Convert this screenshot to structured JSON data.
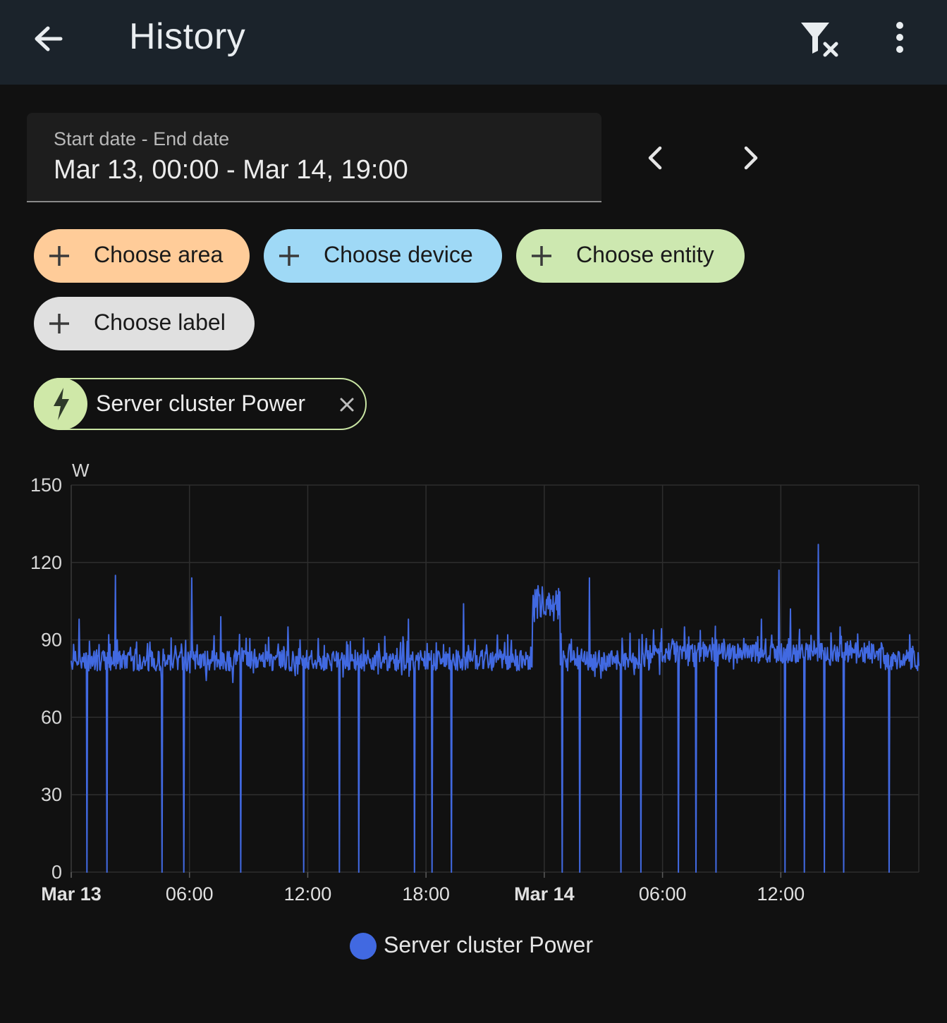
{
  "header": {
    "title": "History",
    "back_icon": "arrow-left-icon",
    "filter_clear_icon": "filter-remove-icon",
    "menu_icon": "dots-vertical-icon"
  },
  "date_picker": {
    "label": "Start date - End date",
    "value": "Mar 13, 00:00 - Mar 14, 19:00",
    "prev_icon": "chevron-left-icon",
    "next_icon": "chevron-right-icon"
  },
  "target_picker": {
    "chips": [
      {
        "label": "Choose area",
        "color": "#ffcc99",
        "icon": "plus-icon"
      },
      {
        "label": "Choose device",
        "color": "#9fd9f6",
        "icon": "plus-icon"
      },
      {
        "label": "Choose entity",
        "color": "#cde8b0",
        "icon": "plus-icon"
      },
      {
        "label": "Choose label",
        "color": "#e0e0e0",
        "icon": "plus-icon"
      }
    ]
  },
  "selected_entity": {
    "label": "Server cluster Power",
    "icon": "lightning-bolt-icon",
    "remove_icon": "close-icon",
    "color": "#cfe8a8"
  },
  "colors": {
    "background": "#111111",
    "header": "#1b232b",
    "series": "#4169e1",
    "grid": "#2e2e2e"
  },
  "chart_data": {
    "type": "line",
    "unit": "W",
    "ylim": [
      0,
      150
    ],
    "y_ticks": [
      "0",
      "30",
      "60",
      "90",
      "120",
      "150"
    ],
    "x_range_hours": [
      0,
      43
    ],
    "x_ticks": [
      {
        "h": 0,
        "label": "Mar 13",
        "bold": true
      },
      {
        "h": 6,
        "label": "06:00",
        "bold": false
      },
      {
        "h": 12,
        "label": "12:00",
        "bold": false
      },
      {
        "h": 18,
        "label": "18:00",
        "bold": false
      },
      {
        "h": 24,
        "label": "Mar 14",
        "bold": true
      },
      {
        "h": 30,
        "label": "06:00",
        "bold": false
      },
      {
        "h": 36,
        "label": "12:00",
        "bold": false
      }
    ],
    "grid": true,
    "legend_position": "bottom",
    "baseline_w": 82,
    "noise_w": 4,
    "series": [
      {
        "name": "Server cluster Power",
        "color": "#4169e1",
        "drops_to_zero_hours": [
          0.8,
          1.8,
          4.6,
          5.7,
          8.6,
          11.8,
          13.6,
          14.6,
          17.4,
          18.3,
          19.3,
          24.9,
          25.8,
          27.9,
          28.9,
          30.8,
          31.7,
          32.7,
          36.2,
          37.2,
          38.2,
          39.2,
          41.5
        ],
        "spikes": [
          {
            "h": 0.4,
            "v": 98
          },
          {
            "h": 1.9,
            "v": 92
          },
          {
            "h": 2.25,
            "v": 115
          },
          {
            "h": 6.1,
            "v": 114
          },
          {
            "h": 7.6,
            "v": 99
          },
          {
            "h": 11.0,
            "v": 95
          },
          {
            "h": 17.1,
            "v": 98
          },
          {
            "h": 19.9,
            "v": 104
          },
          {
            "h": 26.3,
            "v": 114
          },
          {
            "h": 31.1,
            "v": 95
          },
          {
            "h": 35.0,
            "v": 98
          },
          {
            "h": 35.9,
            "v": 117
          },
          {
            "h": 36.5,
            "v": 102
          },
          {
            "h": 37.9,
            "v": 127
          },
          {
            "h": 39.0,
            "v": 95
          }
        ],
        "elevated_segment": {
          "start_h": 23.4,
          "end_h": 24.8,
          "v": 105
        }
      }
    ]
  }
}
